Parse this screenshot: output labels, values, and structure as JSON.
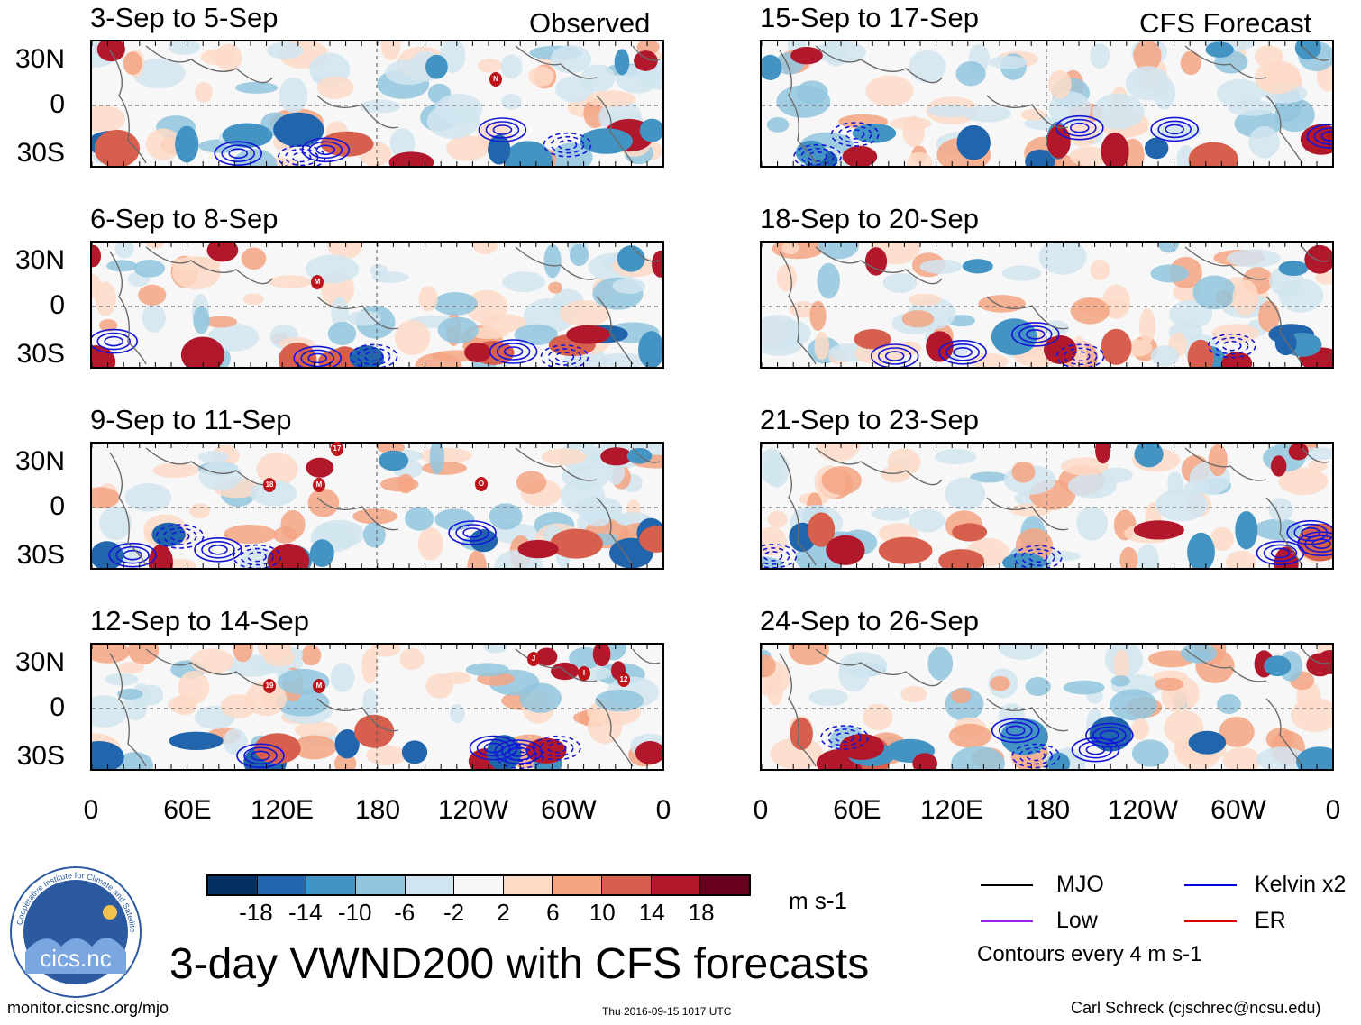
{
  "panels": [
    {
      "title": "3-Sep to 5-Sep",
      "tag": "Observed",
      "storms": [
        "N"
      ]
    },
    {
      "title": "15-Sep to 17-Sep",
      "tag": "CFS Forecast",
      "storms": []
    },
    {
      "title": "6-Sep to 8-Sep",
      "tag": "",
      "storms": [
        "M"
      ]
    },
    {
      "title": "18-Sep to 20-Sep",
      "tag": "",
      "storms": []
    },
    {
      "title": "9-Sep to 11-Sep",
      "tag": "",
      "storms": [
        "17",
        "18",
        "M",
        "O"
      ]
    },
    {
      "title": "21-Sep to 23-Sep",
      "tag": "",
      "storms": []
    },
    {
      "title": "12-Sep to 14-Sep",
      "tag": "",
      "storms": [
        "19",
        "M",
        "J",
        "I",
        "12"
      ]
    },
    {
      "title": "24-Sep to 26-Sep",
      "tag": "",
      "storms": []
    }
  ],
  "lat_labels": [
    "30N",
    "0",
    "30S"
  ],
  "lon_labels": [
    "0",
    "60E",
    "120E",
    "180",
    "120W",
    "60W",
    "0"
  ],
  "colorbar": {
    "ticks": [
      "-18",
      "-14",
      "-10",
      "-6",
      "-2",
      "2",
      "6",
      "10",
      "14",
      "18"
    ],
    "units": "m s-1",
    "colors": [
      "#053061",
      "#2166ac",
      "#4393c3",
      "#92c5de",
      "#d1e5f0",
      "#f7f7f7",
      "#fddbc7",
      "#f4a582",
      "#d6604d",
      "#b2182b",
      "#67001f"
    ]
  },
  "legend": {
    "items": [
      {
        "label": "MJO",
        "color": "#000000"
      },
      {
        "label": "Kelvin x2",
        "color": "#0000dd"
      },
      {
        "label": "Low",
        "color": "#a020f0"
      },
      {
        "label": "ER",
        "color": "#dd0000"
      }
    ],
    "note": "Contours every 4 m s-1"
  },
  "logo_text": "cics.nc",
  "logo_ring_text": "Cooperative Institute for Climate and Satellites",
  "main_title": "3-day VWND200 with CFS forecasts",
  "footer": {
    "left": "monitor.cicsnc.org/mjo",
    "center": "Thu 2016-09-15 1017 UTC",
    "right": "Carl Schreck (cjschrec@ncsu.edu)"
  }
}
